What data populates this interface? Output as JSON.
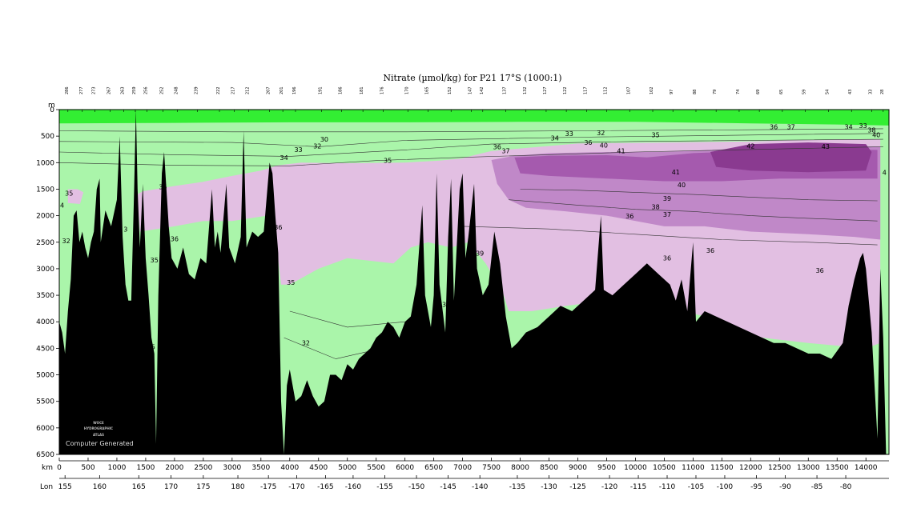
{
  "chart_data": {
    "type": "heatmap",
    "title": "Nitrate (µmol/kg) for P21 17°S (1000:1)",
    "xlabel": "km",
    "x2label": "Lon",
    "ylabel": "m",
    "xlim": [
      0,
      14400
    ],
    "ylim": [
      6500,
      0
    ],
    "km_ticks": [
      0,
      500,
      1000,
      1500,
      2000,
      2500,
      3000,
      3500,
      4000,
      4500,
      5000,
      5500,
      6000,
      6500,
      7000,
      7500,
      8000,
      8500,
      9000,
      9500,
      10000,
      10500,
      11000,
      11500,
      12000,
      12500,
      13000,
      13500,
      14000
    ],
    "depth_ticks": [
      0,
      500,
      1000,
      1500,
      2000,
      2500,
      3000,
      3500,
      4000,
      4500,
      5000,
      5500,
      6000,
      6500
    ],
    "lon_ticks": [
      {
        "km": 100,
        "label": "155"
      },
      {
        "km": 700,
        "label": "160"
      },
      {
        "km": 1380,
        "label": "165"
      },
      {
        "km": 1940,
        "label": "170"
      },
      {
        "km": 2500,
        "label": "175"
      },
      {
        "km": 3100,
        "label": "180"
      },
      {
        "km": 3630,
        "label": "-175"
      },
      {
        "km": 4120,
        "label": "-170"
      },
      {
        "km": 4620,
        "label": "-165"
      },
      {
        "km": 5100,
        "label": "-160"
      },
      {
        "km": 5650,
        "label": "-155"
      },
      {
        "km": 6200,
        "label": "-150"
      },
      {
        "km": 6750,
        "label": "-145"
      },
      {
        "km": 7300,
        "label": "-140"
      },
      {
        "km": 7950,
        "label": "-135"
      },
      {
        "km": 8500,
        "label": "-130"
      },
      {
        "km": 9000,
        "label": "-125"
      },
      {
        "km": 9550,
        "label": "-120"
      },
      {
        "km": 10050,
        "label": "-115"
      },
      {
        "km": 10550,
        "label": "-110"
      },
      {
        "km": 11050,
        "label": "-105"
      },
      {
        "km": 11550,
        "label": "-100"
      },
      {
        "km": 12100,
        "label": "-95"
      },
      {
        "km": 12600,
        "label": "-90"
      },
      {
        "km": 13150,
        "label": "-85"
      },
      {
        "km": 13650,
        "label": "-80"
      }
    ],
    "station_labels": [
      {
        "km": 150,
        "label": "286"
      },
      {
        "km": 400,
        "label": "277"
      },
      {
        "km": 620,
        "label": "273"
      },
      {
        "km": 880,
        "label": "267"
      },
      {
        "km": 1120,
        "label": "263"
      },
      {
        "km": 1320,
        "label": "259"
      },
      {
        "km": 1520,
        "label": "256"
      },
      {
        "km": 1800,
        "label": "252"
      },
      {
        "km": 2050,
        "label": "248"
      },
      {
        "km": 2400,
        "label": "239"
      },
      {
        "km": 2780,
        "label": "222"
      },
      {
        "km": 3040,
        "label": "217"
      },
      {
        "km": 3290,
        "label": "212"
      },
      {
        "km": 3650,
        "label": "207"
      },
      {
        "km": 3880,
        "label": "201"
      },
      {
        "km": 4100,
        "label": "196"
      },
      {
        "km": 4550,
        "label": "191"
      },
      {
        "km": 4900,
        "label": "186"
      },
      {
        "km": 5270,
        "label": "181"
      },
      {
        "km": 5620,
        "label": "176"
      },
      {
        "km": 6050,
        "label": "170"
      },
      {
        "km": 6400,
        "label": "165"
      },
      {
        "km": 6800,
        "label": "152"
      },
      {
        "km": 7150,
        "label": "147"
      },
      {
        "km": 7350,
        "label": "142"
      },
      {
        "km": 7750,
        "label": "137"
      },
      {
        "km": 8100,
        "label": "132"
      },
      {
        "km": 8450,
        "label": "127"
      },
      {
        "km": 8800,
        "label": "122"
      },
      {
        "km": 9150,
        "label": "117"
      },
      {
        "km": 9500,
        "label": "112"
      },
      {
        "km": 9900,
        "label": "107"
      },
      {
        "km": 10300,
        "label": "102"
      },
      {
        "km": 10650,
        "label": "97"
      },
      {
        "km": 11050,
        "label": "88"
      },
      {
        "km": 11400,
        "label": "79"
      },
      {
        "km": 11800,
        "label": "74"
      },
      {
        "km": 12150,
        "label": "69"
      },
      {
        "km": 12550,
        "label": "65"
      },
      {
        "km": 12950,
        "label": "59"
      },
      {
        "km": 13350,
        "label": "54"
      },
      {
        "km": 13750,
        "label": "43"
      },
      {
        "km": 14100,
        "label": "33"
      },
      {
        "km": 14300,
        "label": "28"
      }
    ],
    "color_bands": [
      {
        "range": "0-30",
        "color": "#33ee33"
      },
      {
        "range": "30-35",
        "color": "#aaf5aa"
      },
      {
        "range": "35-39",
        "color": "#e2bfe2"
      },
      {
        "range": "39-41",
        "color": "#c088c8"
      },
      {
        "range": "41-43",
        "color": "#a55aae"
      },
      {
        "range": ">43",
        "color": "#8a3a90"
      }
    ],
    "contour_labels": [
      {
        "km": 170,
        "depth": 1620,
        "label": "35"
      },
      {
        "km": 50,
        "depth": 1850,
        "label": "4"
      },
      {
        "km": 120,
        "depth": 2520,
        "label": "32"
      },
      {
        "km": 1150,
        "depth": 2300,
        "label": "3"
      },
      {
        "km": 1800,
        "depth": 1500,
        "label": "35"
      },
      {
        "km": 2000,
        "depth": 2480,
        "label": "36"
      },
      {
        "km": 1650,
        "depth": 2880,
        "label": "35"
      },
      {
        "km": 1630,
        "depth": 4520,
        "label": "5"
      },
      {
        "km": 3800,
        "depth": 2260,
        "label": "36"
      },
      {
        "km": 4020,
        "depth": 3300,
        "label": "35"
      },
      {
        "km": 4280,
        "depth": 4440,
        "label": "32"
      },
      {
        "km": 3900,
        "depth": 950,
        "label": "34"
      },
      {
        "km": 4480,
        "depth": 730,
        "label": "32"
      },
      {
        "km": 4150,
        "depth": 800,
        "label": "33"
      },
      {
        "km": 4600,
        "depth": 600,
        "label": "30"
      },
      {
        "km": 5700,
        "depth": 1000,
        "label": "35"
      },
      {
        "km": 6680,
        "depth": 3720,
        "label": "3"
      },
      {
        "km": 7300,
        "depth": 2750,
        "label": "39"
      },
      {
        "km": 7600,
        "depth": 750,
        "label": "36"
      },
      {
        "km": 7750,
        "depth": 820,
        "label": "37"
      },
      {
        "km": 8600,
        "depth": 580,
        "label": "34"
      },
      {
        "km": 8850,
        "depth": 500,
        "label": "33"
      },
      {
        "km": 9180,
        "depth": 660,
        "label": "36"
      },
      {
        "km": 9400,
        "depth": 480,
        "label": "32"
      },
      {
        "km": 9450,
        "depth": 720,
        "label": "40"
      },
      {
        "km": 9750,
        "depth": 820,
        "label": "41"
      },
      {
        "km": 10350,
        "depth": 520,
        "label": "35"
      },
      {
        "km": 10700,
        "depth": 1220,
        "label": "41"
      },
      {
        "km": 10800,
        "depth": 1460,
        "label": "40"
      },
      {
        "km": 10550,
        "depth": 1720,
        "label": "39"
      },
      {
        "km": 10350,
        "depth": 1880,
        "label": "38"
      },
      {
        "km": 10550,
        "depth": 2020,
        "label": "37"
      },
      {
        "km": 9900,
        "depth": 2050,
        "label": "36"
      },
      {
        "km": 10550,
        "depth": 2840,
        "label": "36"
      },
      {
        "km": 11300,
        "depth": 2700,
        "label": "36"
      },
      {
        "km": 12000,
        "depth": 730,
        "label": "42"
      },
      {
        "km": 13300,
        "depth": 740,
        "label": "43"
      },
      {
        "km": 12400,
        "depth": 370,
        "label": "36"
      },
      {
        "km": 12700,
        "depth": 370,
        "label": "37"
      },
      {
        "km": 13200,
        "depth": 3080,
        "label": "36"
      },
      {
        "km": 13700,
        "depth": 370,
        "label": "34"
      },
      {
        "km": 13950,
        "depth": 350,
        "label": "33"
      },
      {
        "km": 14100,
        "depth": 430,
        "label": "38"
      },
      {
        "km": 14180,
        "depth": 520,
        "label": "40"
      },
      {
        "km": 14320,
        "depth": 1230,
        "label": "4"
      }
    ],
    "bathymetry": [
      [
        0,
        4000
      ],
      [
        50,
        4200
      ],
      [
        100,
        4600
      ],
      [
        150,
        3800
      ],
      [
        200,
        3200
      ],
      [
        250,
        2000
      ],
      [
        300,
        1900
      ],
      [
        350,
        2500
      ],
      [
        400,
        2300
      ],
      [
        450,
        2600
      ],
      [
        500,
        2800
      ],
      [
        550,
        2500
      ],
      [
        600,
        2300
      ],
      [
        650,
        1500
      ],
      [
        700,
        1300
      ],
      [
        720,
        2500
      ],
      [
        800,
        1900
      ],
      [
        900,
        2200
      ],
      [
        1000,
        1700
      ],
      [
        1050,
        500
      ],
      [
        1100,
        2400
      ],
      [
        1150,
        3300
      ],
      [
        1200,
        3600
      ],
      [
        1250,
        3600
      ],
      [
        1300,
        1500
      ],
      [
        1330,
        0
      ],
      [
        1360,
        1500
      ],
      [
        1400,
        2600
      ],
      [
        1450,
        1400
      ],
      [
        1500,
        2800
      ],
      [
        1550,
        3500
      ],
      [
        1600,
        4300
      ],
      [
        1650,
        4600
      ],
      [
        1680,
        6300
      ],
      [
        1720,
        3500
      ],
      [
        1780,
        1200
      ],
      [
        1820,
        800
      ],
      [
        1860,
        1500
      ],
      [
        1900,
        2200
      ],
      [
        1950,
        2800
      ],
      [
        2050,
        3000
      ],
      [
        2150,
        2600
      ],
      [
        2250,
        3100
      ],
      [
        2350,
        3200
      ],
      [
        2450,
        2800
      ],
      [
        2550,
        2900
      ],
      [
        2650,
        1500
      ],
      [
        2700,
        2600
      ],
      [
        2750,
        2300
      ],
      [
        2800,
        2700
      ],
      [
        2900,
        1400
      ],
      [
        2950,
        2600
      ],
      [
        3050,
        2900
      ],
      [
        3150,
        2400
      ],
      [
        3200,
        400
      ],
      [
        3250,
        2600
      ],
      [
        3350,
        2300
      ],
      [
        3450,
        2400
      ],
      [
        3550,
        2300
      ],
      [
        3650,
        1000
      ],
      [
        3700,
        1200
      ],
      [
        3750,
        2000
      ],
      [
        3800,
        2700
      ],
      [
        3850,
        5500
      ],
      [
        3900,
        6500
      ],
      [
        3950,
        5200
      ],
      [
        4000,
        4900
      ],
      [
        4100,
        5500
      ],
      [
        4200,
        5400
      ],
      [
        4300,
        5100
      ],
      [
        4400,
        5400
      ],
      [
        4500,
        5600
      ],
      [
        4600,
        5500
      ],
      [
        4700,
        5000
      ],
      [
        4800,
        5000
      ],
      [
        4900,
        5100
      ],
      [
        5000,
        4800
      ],
      [
        5100,
        4900
      ],
      [
        5200,
        4700
      ],
      [
        5300,
        4600
      ],
      [
        5400,
        4500
      ],
      [
        5500,
        4300
      ],
      [
        5600,
        4200
      ],
      [
        5700,
        4000
      ],
      [
        5800,
        4100
      ],
      [
        5900,
        4300
      ],
      [
        6000,
        4000
      ],
      [
        6100,
        3900
      ],
      [
        6200,
        3300
      ],
      [
        6300,
        1800
      ],
      [
        6350,
        3500
      ],
      [
        6450,
        4100
      ],
      [
        6500,
        3500
      ],
      [
        6550,
        1200
      ],
      [
        6600,
        3300
      ],
      [
        6700,
        4200
      ],
      [
        6750,
        2400
      ],
      [
        6800,
        1300
      ],
      [
        6850,
        3600
      ],
      [
        6950,
        1500
      ],
      [
        7000,
        1200
      ],
      [
        7050,
        2800
      ],
      [
        7100,
        2400
      ],
      [
        7200,
        1400
      ],
      [
        7250,
        3000
      ],
      [
        7350,
        3500
      ],
      [
        7450,
        3300
      ],
      [
        7550,
        2300
      ],
      [
        7650,
        2900
      ],
      [
        7750,
        3900
      ],
      [
        7850,
        4500
      ],
      [
        7950,
        4400
      ],
      [
        8100,
        4200
      ],
      [
        8300,
        4100
      ],
      [
        8500,
        3900
      ],
      [
        8700,
        3700
      ],
      [
        8900,
        3800
      ],
      [
        9100,
        3600
      ],
      [
        9300,
        3400
      ],
      [
        9400,
        2000
      ],
      [
        9450,
        3400
      ],
      [
        9600,
        3500
      ],
      [
        9800,
        3300
      ],
      [
        10000,
        3100
      ],
      [
        10200,
        2900
      ],
      [
        10400,
        3100
      ],
      [
        10600,
        3300
      ],
      [
        10700,
        3600
      ],
      [
        10800,
        3200
      ],
      [
        10900,
        3800
      ],
      [
        11000,
        2500
      ],
      [
        11050,
        4000
      ],
      [
        11200,
        3800
      ],
      [
        11400,
        3900
      ],
      [
        11600,
        4000
      ],
      [
        11800,
        4100
      ],
      [
        12000,
        4200
      ],
      [
        12200,
        4300
      ],
      [
        12400,
        4400
      ],
      [
        12600,
        4400
      ],
      [
        12800,
        4500
      ],
      [
        13000,
        4600
      ],
      [
        13200,
        4600
      ],
      [
        13400,
        4700
      ],
      [
        13600,
        4400
      ],
      [
        13700,
        3700
      ],
      [
        13800,
        3200
      ],
      [
        13900,
        2800
      ],
      [
        13950,
        2700
      ],
      [
        14000,
        3000
      ],
      [
        14100,
        4200
      ],
      [
        14200,
        6200
      ],
      [
        14250,
        3000
      ],
      [
        14300,
        4300
      ],
      [
        14350,
        6500
      ]
    ]
  },
  "watermark": {
    "line1": "WOCE",
    "line2": "HYDROGRAPHIC",
    "line3": "ATLAS",
    "main": "Computer Generated"
  }
}
